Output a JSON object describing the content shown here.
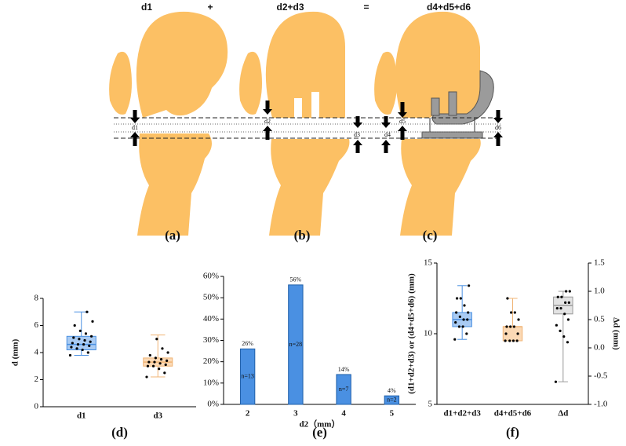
{
  "diagram": {
    "header": [
      "d1",
      "+",
      "d2+d3",
      "=",
      "d4+d5+d6"
    ],
    "panels": [
      {
        "label": "(a)",
        "marks": [
          "d1"
        ]
      },
      {
        "label": "(b)",
        "marks": [
          "d2",
          "d3"
        ]
      },
      {
        "label": "(c)",
        "marks": [
          "d4",
          "d5",
          "d6"
        ]
      }
    ]
  },
  "chart_data": [
    {
      "type": "box",
      "label": "(d)",
      "ylabel": "d (mm)",
      "categories": [
        "d1",
        "d3"
      ],
      "ylim": [
        0,
        8
      ],
      "yticks": [
        0,
        2,
        4,
        6,
        8
      ],
      "boxes": [
        {
          "color": "#4a90e2",
          "fill": "#a9cbf3",
          "min": 3.8,
          "q1": 4.2,
          "median": 4.6,
          "q3": 5.2,
          "max": 7.0,
          "points": [
            3.8,
            4.0,
            4.2,
            4.3,
            4.4,
            4.5,
            4.6,
            4.6,
            4.7,
            4.8,
            4.9,
            5.0,
            5.1,
            5.2,
            5.4,
            5.6,
            6.0,
            6.3,
            7.0
          ]
        },
        {
          "color": "#f0b475",
          "fill": "#fbd9b5",
          "min": 2.2,
          "q1": 3.0,
          "median": 3.3,
          "q3": 3.6,
          "max": 5.3,
          "points": [
            2.2,
            2.5,
            2.8,
            3.0,
            3.0,
            3.1,
            3.2,
            3.3,
            3.3,
            3.4,
            3.5,
            3.6,
            3.8,
            4.0,
            4.3,
            5.0
          ]
        }
      ]
    },
    {
      "type": "bar",
      "label": "(e)",
      "xlabel": "d2（mm）",
      "categories": [
        "2",
        "3",
        "4",
        "5"
      ],
      "values": [
        26,
        56,
        14,
        4
      ],
      "value_labels": [
        "26%",
        "56%",
        "14%",
        "4%"
      ],
      "bar_notes": [
        "n=13",
        "n=28",
        "n=7",
        "n=2"
      ],
      "color": "#4a90e2",
      "ylim": [
        0,
        60
      ],
      "yticks": [
        {
          "value": 0,
          "label": "0%"
        },
        {
          "value": 10,
          "label": "10%"
        },
        {
          "value": 20,
          "label": "20%"
        },
        {
          "value": 30,
          "label": "30%"
        },
        {
          "value": 40,
          "label": "40%"
        },
        {
          "value": 50,
          "label": "50%"
        },
        {
          "value": 60,
          "label": "60%"
        }
      ]
    },
    {
      "type": "box",
      "label": "(f)",
      "ylabel": "(d1+d2+d3) or (d4+d5+d6) (mm)",
      "y2label": "Δd (mm)",
      "categories": [
        "d1+d2+d3",
        "d4+d5+d6",
        "Δd"
      ],
      "ylim": [
        5,
        15
      ],
      "yticks": [
        5,
        10,
        15
      ],
      "y2lim": [
        -1.0,
        1.5
      ],
      "y2ticks": [
        {
          "value": -1.0,
          "label": "-1.0"
        },
        {
          "value": -0.5,
          "label": "-0.5"
        },
        {
          "value": 0.0,
          "label": "0.0"
        },
        {
          "value": 0.5,
          "label": "0.5"
        },
        {
          "value": 1.0,
          "label": "1.0"
        },
        {
          "value": 1.5,
          "label": "1.5"
        }
      ],
      "boxes": [
        {
          "color": "#4a90e2",
          "fill": "#a9cbf3",
          "min": 9.6,
          "q1": 10.5,
          "median": 11.0,
          "q3": 11.5,
          "max": 13.4,
          "points": [
            9.6,
            10.0,
            10.5,
            10.5,
            10.8,
            11.0,
            11.0,
            11.2,
            11.5,
            11.5,
            12.0,
            12.5,
            12.5,
            13.4
          ]
        },
        {
          "color": "#f0b475",
          "fill": "#fbd9b5",
          "min": 9.5,
          "q1": 9.5,
          "median": 10.5,
          "q3": 10.5,
          "max": 12.5,
          "points": [
            9.5,
            9.5,
            9.5,
            9.5,
            10.0,
            10.0,
            10.5,
            10.5,
            10.5,
            11.0,
            11.5,
            11.5,
            12.5
          ]
        },
        {
          "axis": "y2",
          "color": "#999999",
          "fill": "#e3e3e3",
          "min": -0.6,
          "q1": 0.6,
          "median": 0.75,
          "q3": 0.9,
          "max": 1.0,
          "points": [
            -0.6,
            0.1,
            0.2,
            0.3,
            0.4,
            0.5,
            0.6,
            0.7,
            0.7,
            0.8,
            0.8,
            0.9,
            0.9,
            1.0,
            1.0
          ]
        }
      ]
    }
  ]
}
